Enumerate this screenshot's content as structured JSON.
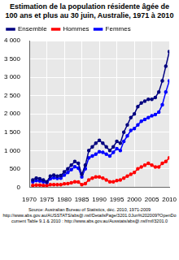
{
  "chart_data": {
    "type": "line",
    "title": "Estimation de la population résidente âgée de 100 ans et plus au 30 juin, Australie, 1971 à 2010",
    "source": [
      "Source: Australian Bureau of Statistics, déc. 2010, 1971-2009",
      "http://www.abs.gov.au/AUSSTATS/abs@.nsf/DetailsPage/3201.0Jun%202009?OpenDocument Table 9.1 & 2010 : http://www.abs.gov.au/Ausstats/abs@.nsf/mf/3201.0"
    ],
    "x": [
      1971,
      1972,
      1973,
      1974,
      1975,
      1976,
      1977,
      1978,
      1979,
      1980,
      1981,
      1982,
      1983,
      1984,
      1985,
      1986,
      1987,
      1988,
      1989,
      1990,
      1991,
      1992,
      1993,
      1994,
      1995,
      1996,
      1997,
      1998,
      1999,
      2000,
      2001,
      2002,
      2003,
      2004,
      2005,
      2006,
      2007,
      2008,
      2009,
      2010
    ],
    "series": [
      {
        "name": "Ensemble",
        "color": "#000080",
        "marker": "circle",
        "line_style": "solid",
        "values": [
          200,
          250,
          230,
          200,
          150,
          300,
          330,
          300,
          320,
          420,
          500,
          600,
          700,
          650,
          350,
          600,
          1000,
          1100,
          1200,
          1280,
          1200,
          1100,
          1000,
          1100,
          1250,
          1200,
          1500,
          1700,
          1900,
          2000,
          2200,
          2300,
          2350,
          2400,
          2400,
          2450,
          2600,
          2900,
          3300,
          3700
        ]
      },
      {
        "name": "Hommes",
        "color": "#ff0000",
        "marker": "circle",
        "line_style": "solid",
        "values": [
          50,
          60,
          60,
          50,
          40,
          70,
          70,
          70,
          70,
          90,
          100,
          120,
          150,
          140,
          70,
          100,
          200,
          250,
          280,
          280,
          250,
          200,
          150,
          150,
          180,
          200,
          250,
          300,
          350,
          400,
          500,
          550,
          600,
          650,
          600,
          550,
          550,
          650,
          700,
          800
        ]
      },
      {
        "name": "Femmes",
        "color": "#0000ff",
        "marker": "circle",
        "line_style": "solid",
        "values": [
          150,
          180,
          170,
          150,
          120,
          230,
          260,
          240,
          250,
          330,
          400,
          480,
          560,
          520,
          280,
          500,
          800,
          850,
          900,
          970,
          950,
          900,
          850,
          950,
          1050,
          1000,
          1250,
          1400,
          1550,
          1600,
          1700,
          1800,
          1850,
          1900,
          1950,
          1980,
          2050,
          2250,
          2600,
          2900
        ]
      }
    ],
    "xlim": [
      1970,
      2010
    ],
    "xticks": [
      1970,
      1975,
      1980,
      1985,
      1990,
      1995,
      2000,
      2005,
      2010
    ],
    "ylim": [
      0,
      4000
    ],
    "yticks": [
      0,
      500,
      {
        "value": 1000,
        "label": "1 000"
      },
      {
        "value": 1500,
        "label": "1 500"
      },
      {
        "value": 2000,
        "label": "2 000"
      },
      {
        "value": 2500,
        "label": "2 500"
      },
      {
        "value": 3000,
        "label": "3 000"
      },
      {
        "value": 3500,
        "label": "3 500"
      },
      {
        "value": 4000,
        "label": "4 000"
      }
    ],
    "grid": true,
    "legend": "upper left"
  }
}
